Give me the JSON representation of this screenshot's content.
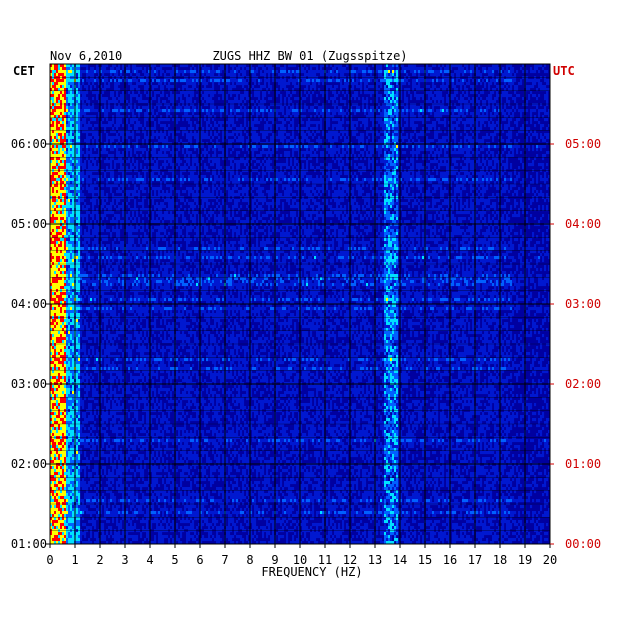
{
  "header": {
    "date": "Nov 6,2010",
    "station": "ZUGS HHZ BW 01 (Zugsspitze)"
  },
  "chart_data": {
    "type": "heatmap",
    "title": "ZUGS HHZ BW 01 (Zugsspitze)",
    "date": "Nov 6,2010",
    "xlabel": "FREQUENCY (HZ)",
    "xlim": [
      0,
      20
    ],
    "x_ticks": [
      "0",
      "1",
      "2",
      "3",
      "4",
      "5",
      "6",
      "7",
      "8",
      "9",
      "10",
      "11",
      "12",
      "13",
      "14",
      "15",
      "16",
      "17",
      "18",
      "19",
      "20"
    ],
    "left_axis": {
      "label": "CET",
      "ticks": [
        "06:00",
        "05:00",
        "04:00",
        "03:00",
        "02:00",
        "01:00"
      ]
    },
    "right_axis": {
      "label": "UTC",
      "ticks": [
        "05:00",
        "04:00",
        "03:00",
        "02:00",
        "01:00",
        "00:00"
      ]
    },
    "colors": {
      "background": "#0000a0",
      "low": "#0018d0",
      "mid": "#0060ff",
      "high": "#00e0ff",
      "peak": "#ffff00",
      "extreme": "#ff0000",
      "grid": "#000000",
      "utc_text": "#d00000"
    },
    "features": {
      "low_frequency_band_hz": [
        0,
        0.6
      ],
      "resonance_band_hz": [
        13.4,
        13.9
      ]
    },
    "grid": true
  }
}
